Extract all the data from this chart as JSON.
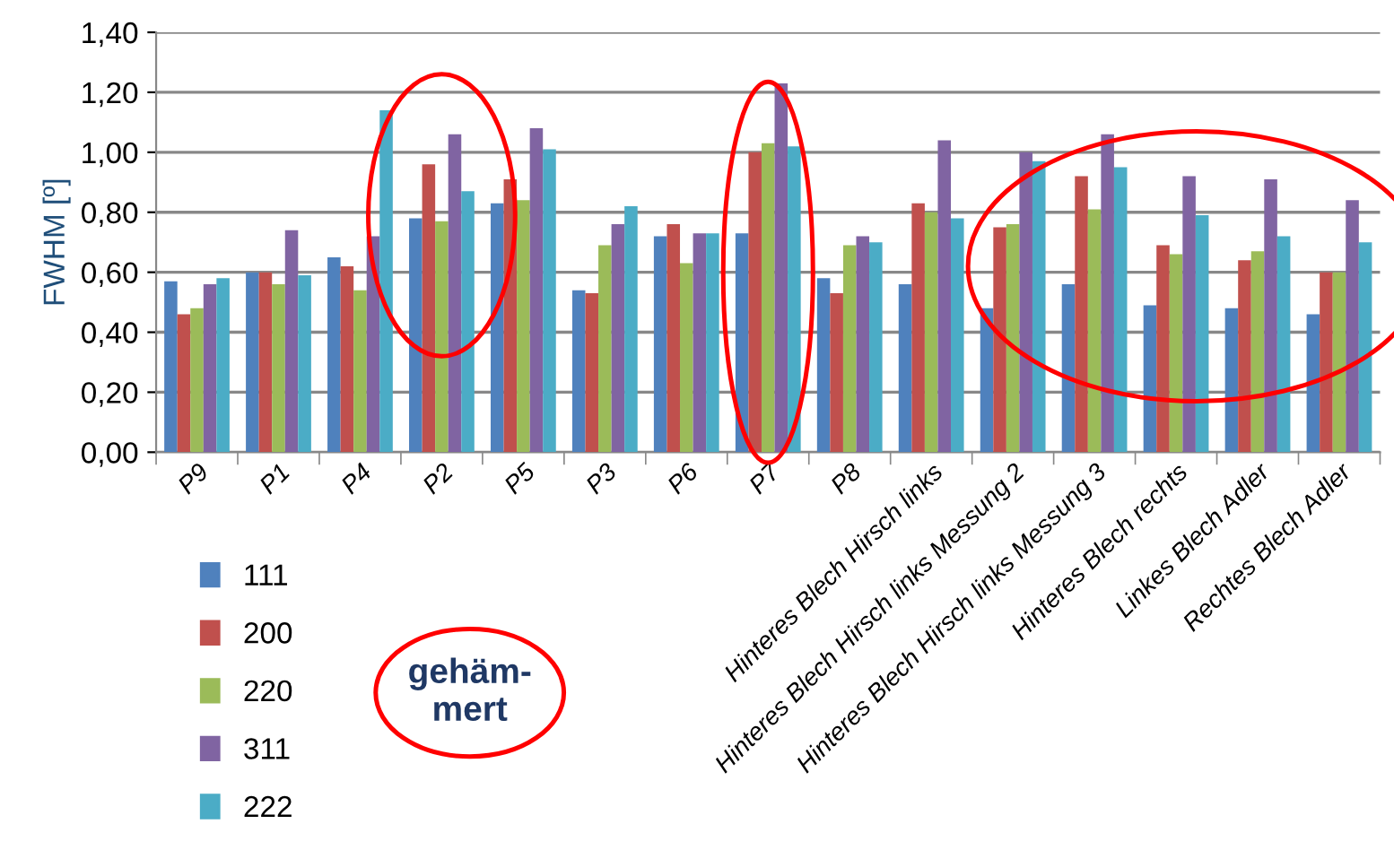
{
  "chart_data": {
    "type": "bar",
    "ylabel": "FWHM [º]",
    "categories": [
      "P9",
      "P1",
      "P4",
      "P2",
      "P5",
      "P3",
      "P6",
      "P7",
      "P8",
      "Hinteres Blech Hirsch links",
      "Hinteres Blech Hirsch links Messung 2",
      "Hinteres Blech Hirsch links Messung 3",
      "Hinteres Blech rechts",
      "Linkes Blech Adler",
      "Rechtes Blech Adler"
    ],
    "series": [
      {
        "name": "111",
        "color": "#4f81bd",
        "values": [
          0.57,
          0.6,
          0.65,
          0.78,
          0.83,
          0.54,
          0.72,
          0.73,
          0.58,
          0.56,
          0.48,
          0.56,
          0.49,
          0.48,
          0.46
        ]
      },
      {
        "name": "200",
        "color": "#c0504d",
        "values": [
          0.46,
          0.6,
          0.62,
          0.96,
          0.91,
          0.53,
          0.76,
          1.0,
          0.53,
          0.83,
          0.75,
          0.92,
          0.69,
          0.64,
          0.6
        ]
      },
      {
        "name": "220",
        "color": "#9bbb59",
        "values": [
          0.48,
          0.56,
          0.54,
          0.77,
          0.84,
          0.69,
          0.63,
          1.03,
          0.69,
          0.8,
          0.76,
          0.81,
          0.66,
          0.67,
          0.6
        ]
      },
      {
        "name": "311",
        "color": "#8064a2",
        "values": [
          0.56,
          0.74,
          0.72,
          1.06,
          1.08,
          0.76,
          0.73,
          1.23,
          0.72,
          1.04,
          1.0,
          1.06,
          0.92,
          0.91,
          0.84
        ]
      },
      {
        "name": "222",
        "color": "#4bacc6",
        "values": [
          0.58,
          0.59,
          1.14,
          0.87,
          1.01,
          0.82,
          0.73,
          1.02,
          0.7,
          0.78,
          0.97,
          0.95,
          0.79,
          0.72,
          0.7
        ]
      }
    ],
    "ylim": [
      0,
      1.4
    ],
    "yticks": [
      {
        "value": 0,
        "label": "0,00"
      },
      {
        "value": 0.2,
        "label": "0,20"
      },
      {
        "value": 0.4,
        "label": "0,40"
      },
      {
        "value": 0.6,
        "label": "0,60"
      },
      {
        "value": 0.8,
        "label": "0,80"
      },
      {
        "value": 1.0,
        "label": "1,00"
      },
      {
        "value": 1.2,
        "label": "1,20"
      },
      {
        "value": 1.4,
        "label": "1,40"
      }
    ],
    "grid": "y",
    "legend": "bottom left",
    "annotations": [
      "gehäm-\nmert"
    ]
  }
}
